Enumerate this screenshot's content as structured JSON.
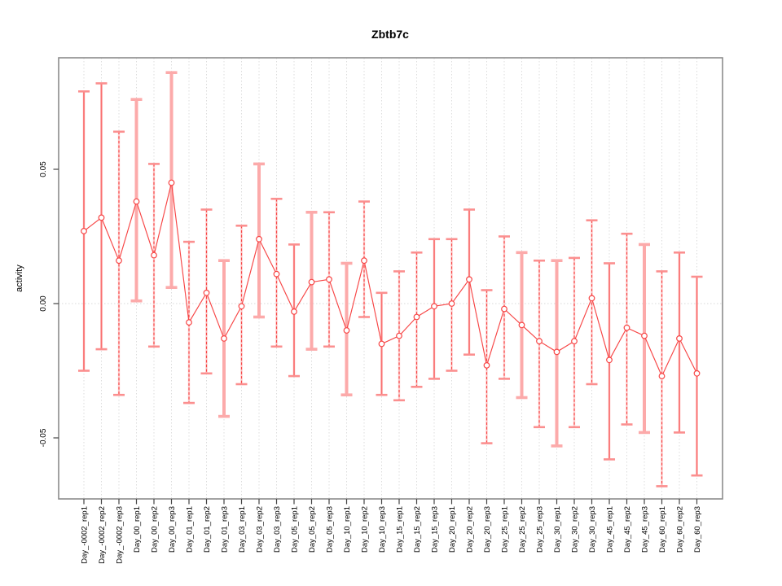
{
  "title": "Zbtb7c",
  "chart_data": {
    "type": "scatter",
    "title": "Zbtb7c",
    "xlabel": "",
    "ylabel": "activity",
    "legend": "none",
    "grid": "vertical dotted gridlines at each category; dotted horizontal reference line at 0",
    "ylim": [
      -0.0727,
      0.0915
    ],
    "yticks": [
      {
        "value": 0.05,
        "label": "0.05"
      },
      {
        "value": 0.0,
        "label": "0.00"
      },
      {
        "value": -0.05,
        "label": "-0.05"
      }
    ],
    "point_marker": "open-circle",
    "error_bars": true,
    "categories": [
      "Day_-0002_rep1",
      "Day_-0002_rep2",
      "Day_-0002_rep3",
      "Day_00_rep1",
      "Day_00_rep2",
      "Day_00_rep3",
      "Day_01_rep1",
      "Day_01_rep2",
      "Day_01_rep3",
      "Day_03_rep1",
      "Day_03_rep2",
      "Day_03_rep3",
      "Day_05_rep1",
      "Day_05_rep2",
      "Day_05_rep3",
      "Day_10_rep1",
      "Day_10_rep2",
      "Day_10_rep3",
      "Day_15_rep1",
      "Day_15_rep2",
      "Day_15_rep3",
      "Day_20_rep1",
      "Day_20_rep2",
      "Day_20_rep3",
      "Day_25_rep1",
      "Day_25_rep2",
      "Day_25_rep3",
      "Day_30_rep1",
      "Day_30_rep2",
      "Day_30_rep3",
      "Day_45_rep1",
      "Day_45_rep2",
      "Day_45_rep3",
      "Day_60_rep1",
      "Day_60_rep2",
      "Day_60_rep3"
    ],
    "values": [
      0.027,
      0.032,
      0.016,
      0.038,
      0.018,
      0.045,
      -0.007,
      0.004,
      -0.013,
      -0.001,
      0.024,
      0.011,
      -0.003,
      0.008,
      0.009,
      -0.01,
      0.016,
      -0.015,
      -0.012,
      -0.005,
      -0.001,
      0.0,
      0.009,
      -0.023,
      -0.002,
      -0.008,
      -0.014,
      -0.018,
      -0.014,
      0.002,
      -0.021,
      -0.009,
      -0.012,
      -0.027,
      -0.013,
      -0.026
    ],
    "error_high": [
      0.079,
      0.082,
      0.064,
      0.076,
      0.052,
      0.086,
      0.023,
      0.035,
      0.016,
      0.029,
      0.052,
      0.039,
      0.022,
      0.034,
      0.034,
      0.015,
      0.038,
      0.004,
      0.012,
      0.019,
      0.024,
      0.024,
      0.035,
      0.005,
      0.025,
      0.019,
      0.016,
      0.016,
      0.017,
      0.031,
      0.015,
      0.026,
      0.022,
      0.012,
      0.019,
      0.01
    ],
    "error_low": [
      -0.025,
      -0.017,
      -0.034,
      0.001,
      -0.016,
      0.006,
      -0.037,
      -0.026,
      -0.042,
      -0.03,
      -0.005,
      -0.016,
      -0.027,
      -0.017,
      -0.016,
      -0.034,
      -0.005,
      -0.034,
      -0.036,
      -0.031,
      -0.028,
      -0.025,
      -0.019,
      -0.052,
      -0.028,
      -0.035,
      -0.046,
      -0.053,
      -0.046,
      -0.03,
      -0.058,
      -0.045,
      -0.048,
      -0.068,
      -0.048,
      -0.064
    ],
    "bar_styles": [
      "solid",
      "solid",
      "dashed",
      "thick",
      "dashed",
      "thick",
      "dashed",
      "dashed",
      "thick",
      "dashed",
      "thick",
      "dashed",
      "solid",
      "thick",
      "dashed",
      "thick",
      "dashed",
      "solid",
      "dashed",
      "dashed",
      "solid",
      "dashed",
      "solid",
      "dashed",
      "dashed",
      "thick",
      "dashed",
      "thick",
      "dashed",
      "dashed",
      "solid",
      "dashed",
      "thick",
      "dashed",
      "solid",
      "solid"
    ],
    "colors": {
      "point": "#f74545",
      "series_line": "#f74545",
      "error_bar_light": "#fcaaaa",
      "error_bar_cap": "#fb8f8f",
      "grid": "#dcdcdc",
      "zero_line": "#d8d8d8",
      "box": "#8c8c8c",
      "text": "#000000",
      "background": "#ffffff"
    }
  }
}
